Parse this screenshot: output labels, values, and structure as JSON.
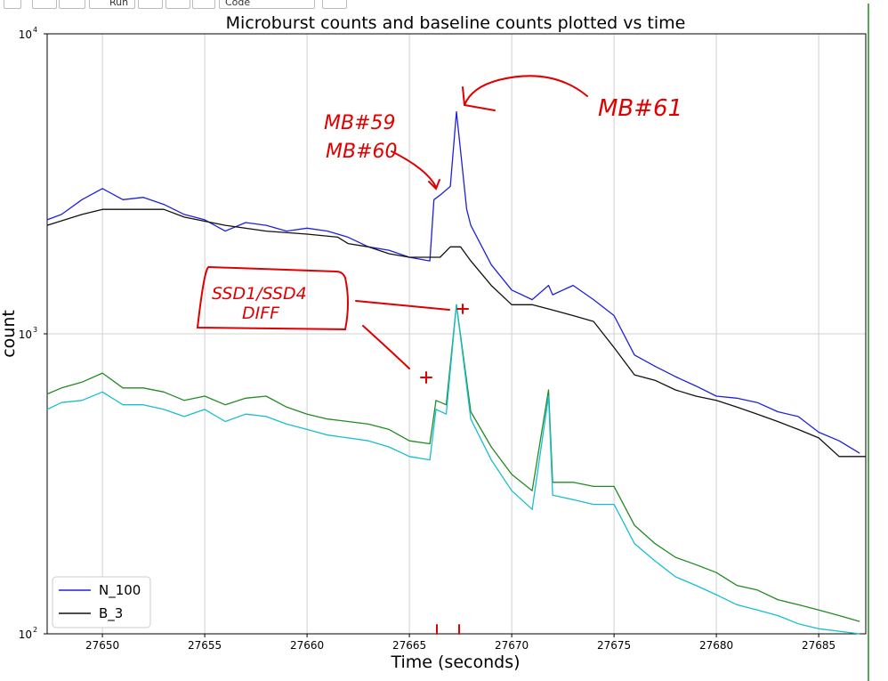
{
  "toolbar": {
    "run_label": "Run",
    "cell_type": "Code"
  },
  "chart_data": {
    "type": "line",
    "title": "Microburst counts and baseline counts plotted vs time",
    "xlabel": "Time (seconds)",
    "ylabel": "count",
    "yscale": "log",
    "xlim": [
      27647.3,
      27687.3
    ],
    "ylim": [
      100,
      10000
    ],
    "xticks": [
      27650,
      27655,
      27660,
      27665,
      27670,
      27675,
      27680,
      27685
    ],
    "yticks": [
      {
        "value": 100,
        "base": "10",
        "exp": "2"
      },
      {
        "value": 1000,
        "base": "10",
        "exp": "3"
      },
      {
        "value": 10000,
        "base": "10",
        "exp": "4"
      }
    ],
    "grid": true,
    "legend_position": "lower-left",
    "series": [
      {
        "name": "N_100",
        "color": "#1f1fe0",
        "x": [
          27647.3,
          27648,
          27649,
          27650,
          27651,
          27652,
          27653,
          27654,
          27655,
          27656,
          27657,
          27658,
          27659,
          27660,
          27661,
          27662,
          27663,
          27664,
          27665,
          27666,
          27666.2,
          27666.5,
          27667,
          27667.3,
          27667.8,
          27668,
          27669,
          27670,
          27671,
          27671.8,
          27672,
          27673,
          27674,
          27675,
          27676,
          27677,
          27678,
          27679,
          27680,
          27681,
          27682,
          27683,
          27684,
          27685,
          27686,
          27687
        ],
        "y": [
          2400,
          2500,
          2800,
          3050,
          2800,
          2850,
          2700,
          2500,
          2400,
          2200,
          2350,
          2300,
          2200,
          2250,
          2200,
          2100,
          1950,
          1900,
          1800,
          1750,
          2800,
          2900,
          3100,
          5500,
          2600,
          2300,
          1700,
          1400,
          1300,
          1450,
          1350,
          1450,
          1300,
          1150,
          850,
          780,
          720,
          670,
          620,
          610,
          590,
          550,
          530,
          470,
          440,
          400
        ]
      },
      {
        "name": "B_3",
        "color": "#111111",
        "x": [
          27647.3,
          27649,
          27650,
          27653,
          27654,
          27656,
          27658,
          27660,
          27661.5,
          27662,
          27663,
          27664,
          27665,
          27666,
          27666.5,
          27667,
          27667.5,
          27668,
          27669,
          27670,
          27671,
          27672,
          27673,
          27674,
          27675,
          27676,
          27677,
          27678,
          27679,
          27680,
          27681,
          27682,
          27683,
          27684,
          27685,
          27686,
          27687.3
        ],
        "y": [
          2300,
          2500,
          2600,
          2600,
          2450,
          2300,
          2200,
          2150,
          2100,
          2000,
          1950,
          1850,
          1800,
          1800,
          1800,
          1950,
          1950,
          1750,
          1450,
          1250,
          1250,
          1200,
          1150,
          1100,
          900,
          730,
          700,
          650,
          620,
          600,
          570,
          540,
          510,
          480,
          450,
          390,
          390
        ]
      },
      {
        "name": "",
        "color": "#228b22",
        "x": [
          27647.3,
          27648,
          27649,
          27650,
          27651,
          27652,
          27653,
          27654,
          27655,
          27656,
          27657,
          27658,
          27659,
          27660,
          27661,
          27662,
          27663,
          27664,
          27665,
          27666,
          27666.3,
          27666.8,
          27667.3,
          27668,
          27669,
          27670,
          27671,
          27671.8,
          27672,
          27673,
          27674,
          27675,
          27676,
          27677,
          27678,
          27679,
          27680,
          27681,
          27682,
          27683,
          27684,
          27685,
          27686,
          27687
        ],
        "y": [
          630,
          660,
          690,
          740,
          660,
          660,
          640,
          600,
          620,
          580,
          610,
          620,
          570,
          540,
          520,
          510,
          500,
          480,
          440,
          430,
          600,
          580,
          1250,
          550,
          420,
          340,
          300,
          650,
          320,
          320,
          310,
          310,
          230,
          200,
          180,
          170,
          160,
          145,
          140,
          130,
          125,
          120,
          115,
          110
        ]
      },
      {
        "name": "",
        "color": "#17becf",
        "x": [
          27647.3,
          27648,
          27649,
          27650,
          27651,
          27652,
          27653,
          27654,
          27655,
          27656,
          27657,
          27658,
          27659,
          27660,
          27661,
          27662,
          27663,
          27664,
          27665,
          27666,
          27666.3,
          27666.8,
          27667.3,
          27668,
          27669,
          27670,
          27671,
          27671.8,
          27672,
          27673,
          27674,
          27675,
          27676,
          27677,
          27678,
          27679,
          27680,
          27681,
          27682,
          27683,
          27684,
          27685,
          27686,
          27687
        ],
        "y": [
          560,
          590,
          600,
          640,
          580,
          580,
          560,
          530,
          560,
          510,
          540,
          530,
          500,
          480,
          460,
          450,
          440,
          420,
          390,
          380,
          560,
          540,
          1250,
          520,
          380,
          300,
          260,
          620,
          290,
          280,
          270,
          270,
          200,
          175,
          155,
          145,
          135,
          125,
          120,
          115,
          108,
          104,
          102,
          100
        ]
      }
    ],
    "annotations": [
      {
        "text": "MB#59"
      },
      {
        "text": "MB#60"
      },
      {
        "text": "MB#61"
      },
      {
        "text": "SSD1/SSD4"
      },
      {
        "text": "DIFF"
      }
    ]
  }
}
